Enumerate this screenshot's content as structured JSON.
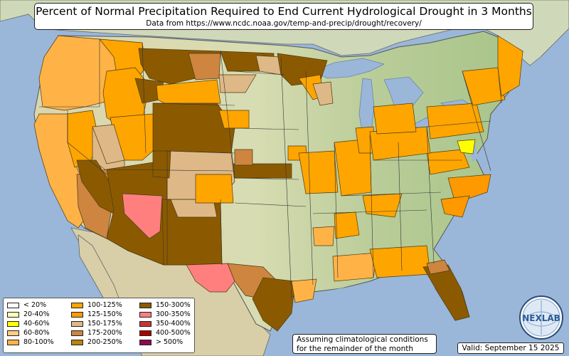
{
  "title": "Percent of Normal Precipitation Required to End Current Hydrological Drought in 3 Months",
  "subtitle": "Data from https://www.ncdc.noaa.gov/temp-and-precip/drought/recovery/",
  "legend": [
    {
      "label": "< 20%",
      "color": "#ffffff"
    },
    {
      "label": "20-40%",
      "color": "#ffffb2"
    },
    {
      "label": "40-60%",
      "color": "#ffff00"
    },
    {
      "label": "60-80%",
      "color": "#ffcc80"
    },
    {
      "label": "80-100%",
      "color": "#ffb347"
    },
    {
      "label": "100-125%",
      "color": "#ffa500"
    },
    {
      "label": "125-150%",
      "color": "#ff9900"
    },
    {
      "label": "150-175%",
      "color": "#deb887"
    },
    {
      "label": "175-200%",
      "color": "#cd853f"
    },
    {
      "label": "200-250%",
      "color": "#b8860b"
    },
    {
      "label": "150-300%",
      "color": "#8b5a00"
    },
    {
      "label": "300-350%",
      "color": "#ff7f7f"
    },
    {
      "label": "350-400%",
      "color": "#cd3333"
    },
    {
      "label": "400-500%",
      "color": "#aa0000"
    },
    {
      "label": "> 500%",
      "color": "#8b0a50"
    }
  ],
  "note": {
    "line1": "Assuming climatological conditions",
    "line2": "for the remainder of the month"
  },
  "valid": "Valid: September 15 2025",
  "logo_text": "NEXLAB",
  "colors": {
    "ocean": "#9ab7d9",
    "land": "#d9ddb4",
    "land_green": "#a9c489",
    "mexico": "#d8cfa8",
    "canada": "#cfd9b9",
    "border": "#333333"
  }
}
